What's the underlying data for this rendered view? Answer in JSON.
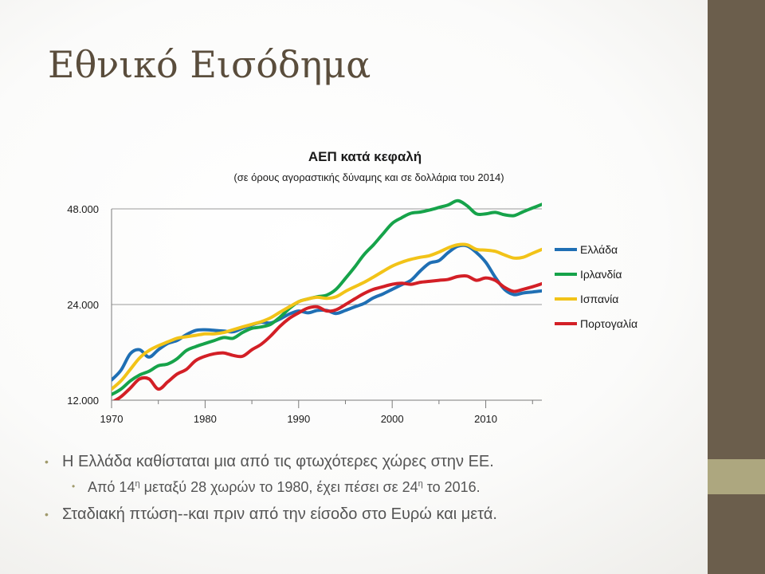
{
  "slide": {
    "title": "Εθνικό Εισόδημα",
    "bullets": {
      "b1": "Η Ελλάδα καθίσταται μια από τις φτωχότερες χώρες στην ΕΕ.",
      "b2_a": "Από 14",
      "b2_sup1": "η",
      "b2_b": " μεταξύ 28 χωρών το 1980, έχει πέσει σε 24",
      "b2_sup2": "η",
      "b2_c": " το 2016.",
      "b3": "Σταδιακή πτώση--και πριν από την είσοδο στο Ευρώ και μετά."
    },
    "colors": {
      "sidebar": "#6b5e4c",
      "sidebar_accent": "#ada77f",
      "bullet": "#a09a6c"
    }
  },
  "chart_data": {
    "type": "line",
    "title": "ΑΕΠ κατά κεφαλή",
    "subtitle": "(σε όρους αγοραστικής δύναμης και σε δολλάρια του 2014)",
    "xlabel": "",
    "ylabel": "",
    "xlim": [
      1970,
      2016
    ],
    "ylim": [
      12000,
      48000
    ],
    "y_scale": "log",
    "x_ticks": [
      1970,
      1980,
      1990,
      2000,
      2010
    ],
    "x_tick_labels": [
      "1970",
      "1980",
      "1990",
      "2000",
      "2010"
    ],
    "y_ticks": [
      12000,
      24000,
      48000
    ],
    "y_tick_labels": [
      "12.000",
      "24.000",
      "48.000"
    ],
    "grid": "horizontal",
    "legend": "right",
    "x": [
      1970,
      1971,
      1972,
      1973,
      1974,
      1975,
      1976,
      1977,
      1978,
      1979,
      1980,
      1981,
      1982,
      1983,
      1984,
      1985,
      1986,
      1987,
      1988,
      1989,
      1990,
      1991,
      1992,
      1993,
      1994,
      1995,
      1996,
      1997,
      1998,
      1999,
      2000,
      2001,
      2002,
      2003,
      2004,
      2005,
      2006,
      2007,
      2008,
      2009,
      2010,
      2011,
      2012,
      2013,
      2014,
      2015,
      2016
    ],
    "series": [
      {
        "name": "Ελλάδα",
        "color": "#1f6fb4",
        "values": [
          13900,
          14900,
          16800,
          17300,
          16400,
          17300,
          18100,
          18500,
          19300,
          19900,
          20000,
          19900,
          19800,
          19700,
          20200,
          20700,
          21100,
          21000,
          21600,
          22400,
          22900,
          22600,
          23000,
          23000,
          22500,
          23000,
          23600,
          24200,
          25200,
          25900,
          26800,
          27700,
          28600,
          30600,
          32400,
          33000,
          35000,
          36600,
          36700,
          35000,
          32600,
          29300,
          26800,
          25800,
          26100,
          26300,
          26500
        ]
      },
      {
        "name": "Ιρλανδία",
        "color": "#16a34a",
        "values": [
          12500,
          13000,
          13800,
          14400,
          14800,
          15400,
          15600,
          16200,
          17200,
          17700,
          18100,
          18500,
          18900,
          18800,
          19600,
          20200,
          20400,
          20800,
          21900,
          23300,
          24500,
          25000,
          25400,
          25700,
          26800,
          29000,
          31500,
          34500,
          37000,
          40000,
          43200,
          45000,
          46500,
          46900,
          47600,
          48500,
          49400,
          50900,
          49100,
          46300,
          46300,
          46800,
          46000,
          45700,
          47000,
          48300,
          49600
        ]
      },
      {
        "name": "Ισπανία",
        "color": "#f2c318",
        "values": [
          13000,
          13800,
          15000,
          16300,
          17200,
          17800,
          18300,
          18800,
          19000,
          19200,
          19400,
          19400,
          19600,
          20000,
          20400,
          20800,
          21200,
          21800,
          22700,
          23600,
          24500,
          25000,
          25300,
          25100,
          25400,
          26400,
          27300,
          28200,
          29300,
          30500,
          31700,
          32600,
          33300,
          33800,
          34200,
          35100,
          36200,
          37000,
          37000,
          35800,
          35600,
          35300,
          34400,
          33600,
          33800,
          34800,
          35800
        ]
      },
      {
        "name": "Πορτογαλία",
        "color": "#d31f26",
        "values": [
          11800,
          12300,
          13100,
          14000,
          14000,
          13000,
          13700,
          14500,
          15000,
          16000,
          16500,
          16800,
          16900,
          16600,
          16500,
          17300,
          18000,
          19100,
          20500,
          21700,
          22600,
          23400,
          23600,
          22900,
          23100,
          24000,
          25000,
          26000,
          26800,
          27300,
          27800,
          28000,
          27800,
          28200,
          28400,
          28600,
          28800,
          29400,
          29500,
          28600,
          29100,
          28600,
          27200,
          26400,
          26800,
          27300,
          27900
        ]
      }
    ]
  }
}
